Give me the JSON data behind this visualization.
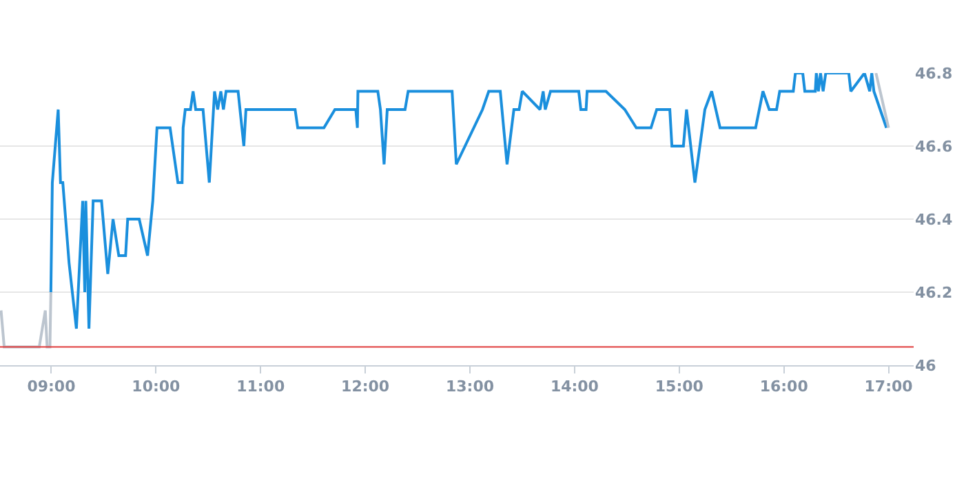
{
  "chart_data": {
    "type": "line",
    "xlim": [
      8.51,
      17.24
    ],
    "xticks": [
      {
        "value": 9,
        "label": "09:00"
      },
      {
        "value": 10,
        "label": "10:00"
      },
      {
        "value": 11,
        "label": "11:00"
      },
      {
        "value": 12,
        "label": "12:00"
      },
      {
        "value": 13,
        "label": "13:00"
      },
      {
        "value": 14,
        "label": "14:00"
      },
      {
        "value": 15,
        "label": "15:00"
      },
      {
        "value": 16,
        "label": "16:00"
      },
      {
        "value": 17,
        "label": "17:00"
      }
    ],
    "ylim": [
      46,
      46.8
    ],
    "yticks": [
      46,
      46.2,
      46.4,
      46.6,
      46.8
    ],
    "grid": "y",
    "marker": "none",
    "line_style": "solid",
    "ref_lines": [
      {
        "axis": "y",
        "value": 46.05,
        "color": "#e03a3a"
      }
    ],
    "series": [
      {
        "color": "#bcc5cf",
        "x": [
          8.52,
          8.55,
          8.885,
          8.943,
          8.96,
          8.987,
          8.996
        ],
        "values": [
          46.15,
          46.05,
          46.05,
          46.15,
          46.05,
          46.05,
          46.2
        ]
      },
      {
        "color": "#1a8fdd",
        "x": [
          8.996,
          9.01,
          9.066,
          9.088,
          9.11,
          9.17,
          9.24,
          9.3,
          9.32,
          9.33,
          9.36,
          9.4,
          9.48,
          9.54,
          9.59,
          9.645,
          9.71,
          9.73,
          9.84,
          9.92,
          9.97,
          10.01,
          10.135,
          10.21,
          10.25,
          10.26,
          10.28,
          10.33,
          10.355,
          10.38,
          10.45,
          10.51,
          10.56,
          10.59,
          10.62,
          10.645,
          10.67,
          10.785,
          10.84,
          10.86,
          11.33,
          11.355,
          11.605,
          11.71,
          11.91,
          11.925,
          11.93,
          12.12,
          12.145,
          12.18,
          12.21,
          12.38,
          12.41,
          12.83,
          12.87,
          13.12,
          13.18,
          13.29,
          13.355,
          13.42,
          13.47,
          13.5,
          13.67,
          13.7,
          13.72,
          13.77,
          14.04,
          14.06,
          14.11,
          14.12,
          14.3,
          14.48,
          14.59,
          14.73,
          14.785,
          14.91,
          14.93,
          15.04,
          15.07,
          15.15,
          15.245,
          15.31,
          15.39,
          15.73,
          15.8,
          15.86,
          15.93,
          15.96,
          16.09,
          16.11,
          16.18,
          16.2,
          16.3,
          16.31,
          16.33,
          16.35,
          16.375,
          16.4,
          16.62,
          16.64,
          16.77,
          16.82,
          16.84,
          16.86,
          16.98
        ],
        "values": [
          46.2,
          46.5,
          46.7,
          46.5,
          46.5,
          46.28,
          46.1,
          46.45,
          46.2,
          46.45,
          46.1,
          46.45,
          46.45,
          46.25,
          46.4,
          46.3,
          46.3,
          46.4,
          46.4,
          46.3,
          46.45,
          46.65,
          46.65,
          46.5,
          46.5,
          46.65,
          46.7,
          46.7,
          46.75,
          46.7,
          46.7,
          46.5,
          46.75,
          46.7,
          46.75,
          46.7,
          46.75,
          46.75,
          46.6,
          46.7,
          46.7,
          46.65,
          46.65,
          46.7,
          46.7,
          46.65,
          46.75,
          46.75,
          46.7,
          46.55,
          46.7,
          46.7,
          46.75,
          46.75,
          46.55,
          46.7,
          46.75,
          46.75,
          46.55,
          46.7,
          46.7,
          46.75,
          46.7,
          46.75,
          46.7,
          46.75,
          46.75,
          46.7,
          46.7,
          46.75,
          46.75,
          46.7,
          46.65,
          46.65,
          46.7,
          46.7,
          46.6,
          46.6,
          46.7,
          46.5,
          46.7,
          46.75,
          46.65,
          46.65,
          46.75,
          46.7,
          46.7,
          46.75,
          46.75,
          46.8,
          46.8,
          46.75,
          46.75,
          46.8,
          46.75,
          46.8,
          46.75,
          46.8,
          46.8,
          46.75,
          46.8,
          46.75,
          46.8,
          46.75,
          46.65
        ]
      },
      {
        "color": "#bcc5cf",
        "x": [
          16.88,
          17.0
        ],
        "values": [
          46.8,
          46.65
        ]
      }
    ]
  }
}
